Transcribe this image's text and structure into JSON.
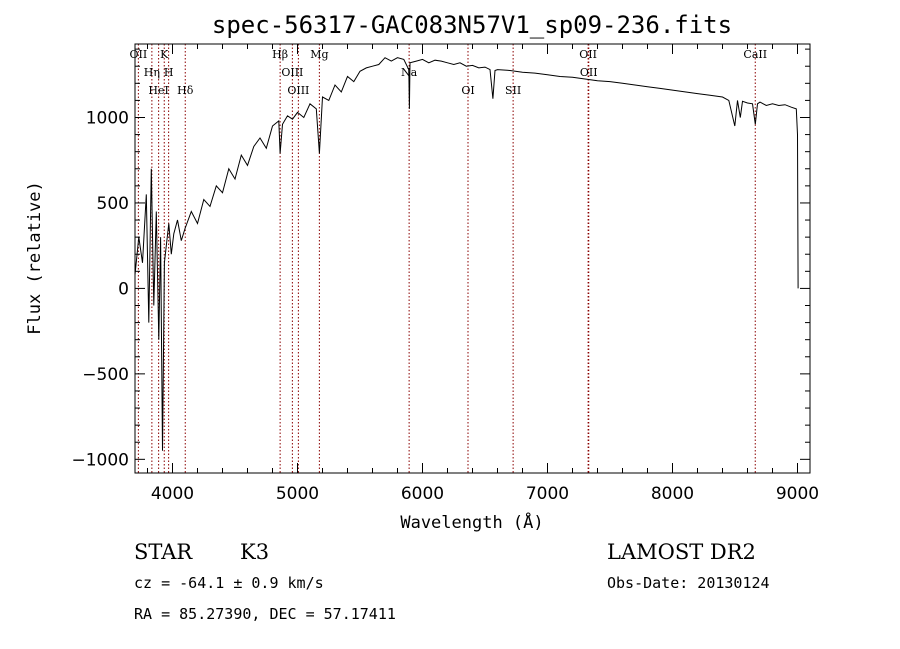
{
  "chart_data": {
    "type": "line",
    "title": "spec-56317-GAC083N57V1_sp09-236.fits",
    "xlabel": "Wavelength (Å)",
    "ylabel": "Flux (relative)",
    "xlim": [
      3700,
      9100
    ],
    "ylim": [
      -1080,
      1430
    ],
    "xticks": [
      4000,
      5000,
      6000,
      7000,
      8000,
      9000
    ],
    "yticks": [
      -1000,
      -500,
      0,
      500,
      1000
    ],
    "grid": false,
    "series": [
      {
        "color": "#000000",
        "x": [
          3700,
          3730,
          3760,
          3790,
          3810,
          3830,
          3850,
          3870,
          3890,
          3905,
          3920,
          3935,
          3950,
          3970,
          3990,
          4010,
          4040,
          4070,
          4100,
          4150,
          4200,
          4250,
          4300,
          4350,
          4400,
          4450,
          4500,
          4550,
          4600,
          4650,
          4700,
          4750,
          4800,
          4850,
          4861,
          4880,
          4920,
          4960,
          5000,
          5050,
          5100,
          5150,
          5175,
          5200,
          5250,
          5300,
          5350,
          5400,
          5450,
          5500,
          5550,
          5600,
          5650,
          5700,
          5750,
          5800,
          5850,
          5890,
          5895,
          5900,
          5950,
          6000,
          6050,
          6100,
          6150,
          6200,
          6250,
          6300,
          6350,
          6400,
          6450,
          6500,
          6540,
          6563,
          6580,
          6600,
          6700,
          6800,
          6900,
          7000,
          7100,
          7200,
          7300,
          7400,
          7500,
          7600,
          7700,
          7800,
          7900,
          8000,
          8100,
          8200,
          8300,
          8400,
          8450,
          8498,
          8520,
          8542,
          8560,
          8600,
          8640,
          8662,
          8680,
          8700,
          8750,
          8800,
          8850,
          8900,
          8950,
          8990,
          9000,
          9005
        ],
        "y": [
          80,
          300,
          150,
          550,
          -200,
          700,
          -100,
          450,
          -300,
          300,
          -950,
          150,
          250,
          380,
          200,
          320,
          400,
          280,
          350,
          450,
          380,
          520,
          480,
          600,
          560,
          700,
          640,
          780,
          720,
          830,
          880,
          820,
          950,
          980,
          790,
          960,
          1010,
          990,
          1030,
          1000,
          1080,
          1050,
          790,
          1120,
          1100,
          1190,
          1150,
          1240,
          1210,
          1270,
          1290,
          1300,
          1310,
          1350,
          1330,
          1350,
          1340,
          1280,
          1050,
          1320,
          1330,
          1340,
          1320,
          1335,
          1330,
          1320,
          1310,
          1320,
          1300,
          1305,
          1290,
          1295,
          1280,
          1110,
          1275,
          1280,
          1275,
          1265,
          1260,
          1250,
          1240,
          1235,
          1225,
          1215,
          1210,
          1200,
          1190,
          1180,
          1170,
          1160,
          1150,
          1140,
          1130,
          1120,
          1100,
          950,
          1100,
          1000,
          1095,
          1085,
          1080,
          960,
          1080,
          1090,
          1070,
          1080,
          1070,
          1075,
          1060,
          1050,
          900,
          0
        ]
      }
    ],
    "spectral_lines": [
      {
        "label": "OII",
        "x": 3727
      },
      {
        "label": "Hη",
        "x": 3835
      },
      {
        "label": "HeI",
        "x": 3889
      },
      {
        "label": "K",
        "x": 3934
      },
      {
        "label": "H",
        "x": 3969
      },
      {
        "label": "Hδ",
        "x": 4102
      },
      {
        "label": "Hβ",
        "x": 4861
      },
      {
        "label": "OIII",
        "x": 4959
      },
      {
        "label": "OIII",
        "x": 5007
      },
      {
        "label": "Mg",
        "x": 5175
      },
      {
        "label": "Na",
        "x": 5893
      },
      {
        "label": "OI",
        "x": 6364
      },
      {
        "label": "OII",
        "x": 7325
      },
      {
        "label": "OII",
        "x": 7330
      },
      {
        "label": "SII",
        "x": 6725
      },
      {
        "label": "CaII",
        "x": 8662
      }
    ]
  },
  "info": {
    "object_class": "STAR",
    "subclass": "K3",
    "survey": "LAMOST DR2",
    "redshift_text": "cz = -64.1 ± 0.9 km/s",
    "obs_date_text": "Obs-Date: 20130124",
    "coords_text": "RA =  85.27390, DEC =  57.17411"
  }
}
